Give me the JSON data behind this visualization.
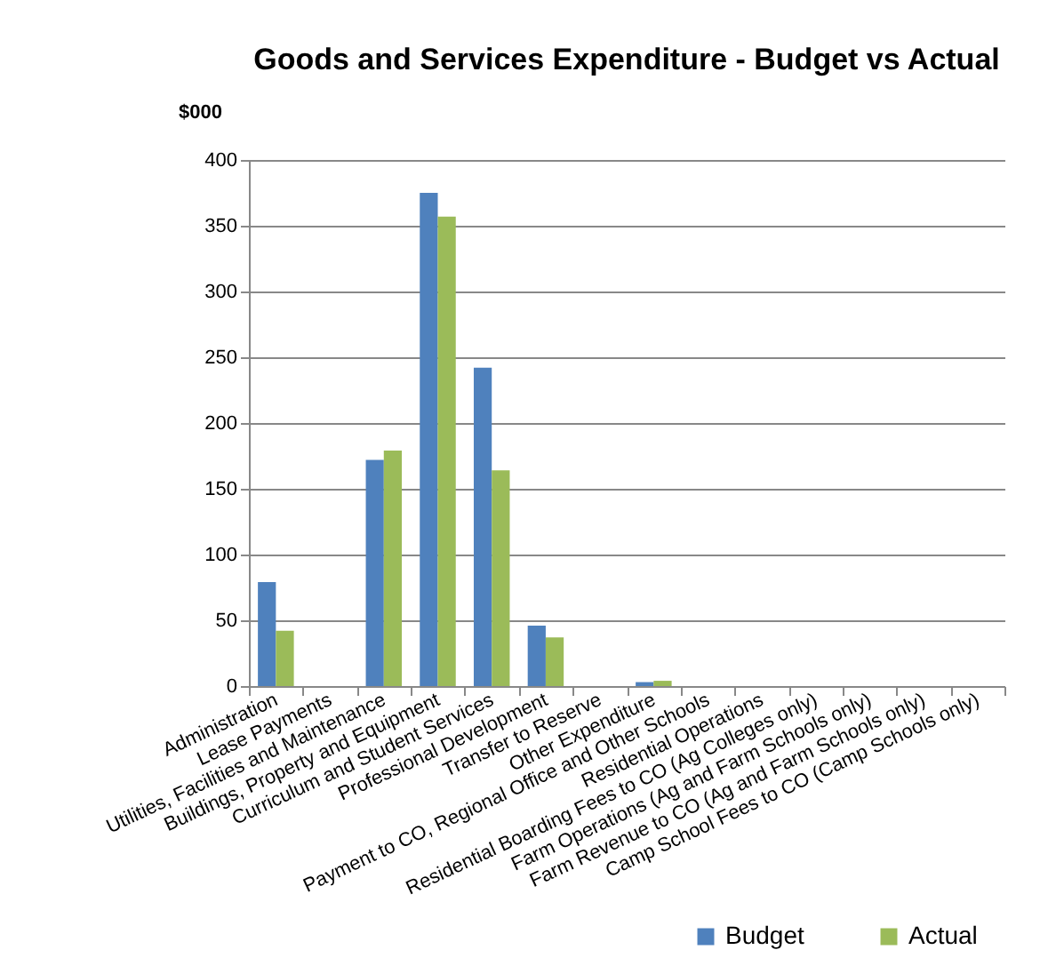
{
  "chart_data": {
    "type": "bar",
    "title": "Goods and Services Expenditure - Budget vs Actual",
    "ylabel": "$000",
    "categories": [
      "Administration",
      "Lease Payments",
      "Utilities, Facilities and Maintenance",
      "Buildings, Property and Equipment",
      "Curriculum and Student Services",
      "Professional Development",
      "Transfer to Reserve",
      "Other Expenditure",
      "Payment to CO, Regional Office and Other Schools",
      "Residential Operations",
      "Residential Boarding Fees to CO (Ag Colleges only)",
      "Farm Operations (Ag and Farm Schools only)",
      "Farm Revenue to CO (Ag and Farm Schools only)",
      "Camp School Fees to CO (Camp Schools only)"
    ],
    "series": [
      {
        "name": "Budget",
        "color": "#4f81bd",
        "values": [
          79,
          0,
          172,
          375,
          242,
          46,
          0,
          3,
          0,
          0,
          0,
          0,
          0,
          0
        ]
      },
      {
        "name": "Actual",
        "color": "#9bbb59",
        "values": [
          42,
          0,
          179,
          357,
          164,
          37,
          0,
          4,
          0,
          0,
          0,
          0,
          0,
          0
        ]
      }
    ],
    "ylim": [
      0,
      400
    ],
    "yticks": [
      0,
      50,
      100,
      150,
      200,
      250,
      300,
      350,
      400
    ],
    "grid": "y",
    "legend": "bottom right"
  }
}
